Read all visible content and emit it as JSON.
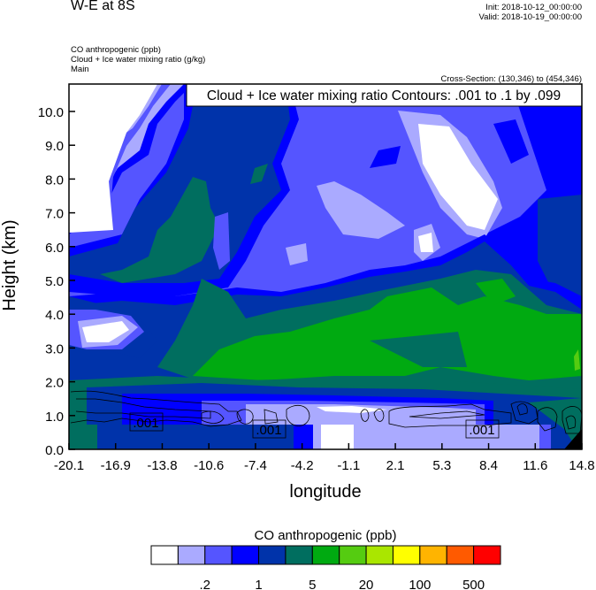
{
  "header": {
    "title": "W-E at 8S",
    "init": "Init: 2018-10-12_00:00:00",
    "valid": "Valid: 2018-10-19_00:00:00",
    "field1": "CO anthropogenic   (ppb)",
    "field2": "Cloud + Ice water mixing ratio   (g/kg)",
    "field3": "Main",
    "cross_section": "Cross-Section: (130,346) to (454,346)"
  },
  "contour_info": "Cloud + Ice water mixing ratio Contours: .001 to .1 by .099",
  "contour_labels": [
    ".001",
    ".001",
    ".001"
  ],
  "colorbar": {
    "title": "CO anthropogenic  (ppb)",
    "colors": [
      "#ffffff",
      "#aaaaff",
      "#5555ff",
      "#0000ff",
      "#0033aa",
      "#006e5f",
      "#00aa11",
      "#55cc11",
      "#aae600",
      "#ffff00",
      "#ffb400",
      "#ff5a00",
      "#ff0000"
    ],
    "labels": [
      ".2",
      "1",
      "5",
      "20",
      "100",
      "500"
    ]
  },
  "chart_data": {
    "type": "heatmap",
    "title": "W-E at 8S",
    "xlabel": "longitude",
    "ylabel": "Height (km)",
    "x_ticks": [
      "-20.1",
      "-16.9",
      "-13.8",
      "-10.6",
      "-7.4",
      "-4.2",
      "-1.1",
      "2.1",
      "5.3",
      "8.4",
      "11.6",
      "14.8"
    ],
    "y_ticks": [
      "0.0",
      "1.0",
      "2.0",
      "3.0",
      "4.0",
      "5.0",
      "6.0",
      "7.0",
      "8.0",
      "9.0",
      "10.0"
    ],
    "xlim": [
      -20.1,
      14.8
    ],
    "ylim": [
      0,
      10.8
    ],
    "fill_field": "CO anthropogenic (ppb)",
    "contour_field": "Cloud + Ice water mixing ratio (g/kg)",
    "contour_levels": [
      0.001,
      0.1
    ],
    "legend": "bottom"
  }
}
